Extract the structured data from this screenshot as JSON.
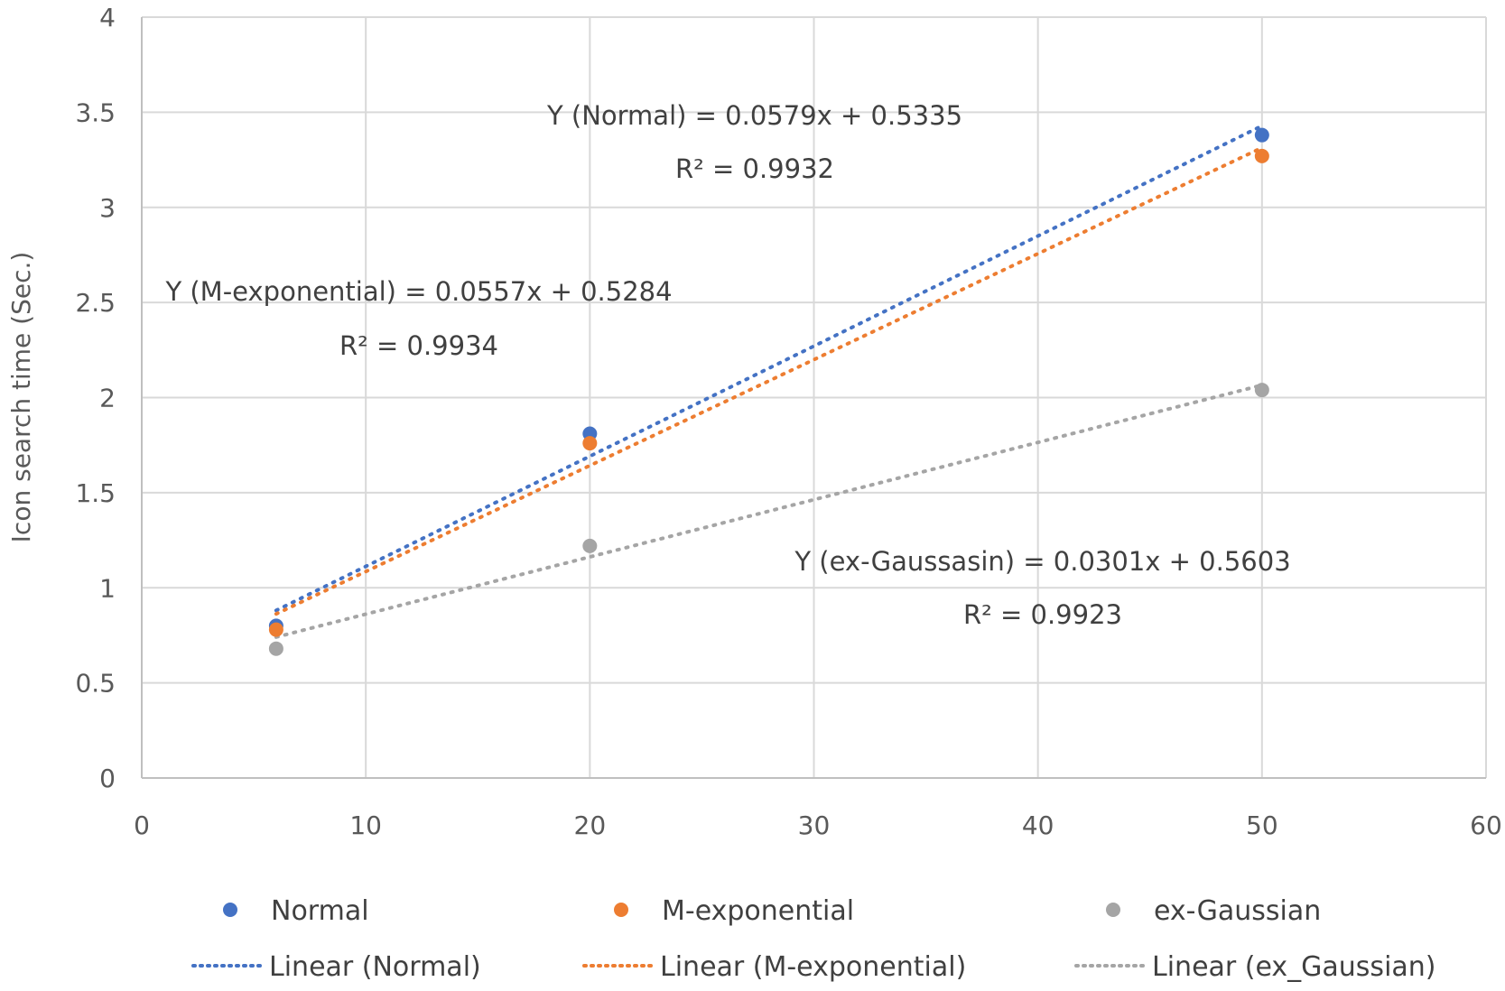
{
  "chart_data": {
    "type": "scatter",
    "title": "",
    "xlabel": "",
    "ylabel": "Icon search time (Sec.)",
    "xlim": [
      0,
      60
    ],
    "ylim": [
      0,
      4
    ],
    "xticks": [
      0,
      10,
      20,
      30,
      40,
      50,
      60
    ],
    "yticks": [
      0,
      0.5,
      1,
      1.5,
      2,
      2.5,
      3,
      3.5,
      4
    ],
    "xtick_labels": [
      "0",
      "10",
      "20",
      "30",
      "40",
      "50",
      "60"
    ],
    "ytick_labels": [
      "0",
      "0.5",
      "1",
      "1.5",
      "2",
      "2.5",
      "3",
      "3.5",
      "4"
    ],
    "grid": true,
    "legend_position": "bottom",
    "x": [
      6,
      20,
      50
    ],
    "series": [
      {
        "name": "Normal",
        "color": "#4472c4",
        "values": [
          0.8,
          1.81,
          3.38
        ],
        "trendline": {
          "name": "Linear (Normal)",
          "slope": 0.0579,
          "intercept": 0.5335,
          "r2": 0.9932,
          "equation_label": "Y (Normal) = 0.0579x + 0.5335",
          "r2_label": "R² = 0.9932"
        }
      },
      {
        "name": "M-exponential",
        "color": "#ed7d31",
        "values": [
          0.78,
          1.76,
          3.27
        ],
        "trendline": {
          "name": "Linear (M-exponential)",
          "slope": 0.0557,
          "intercept": 0.5284,
          "r2": 0.9934,
          "equation_label": "Y (M-exponential) = 0.0557x + 0.5284",
          "r2_label": "R² = 0.9934"
        }
      },
      {
        "name": "ex-Gaussian",
        "color": "#a5a5a5",
        "values": [
          0.68,
          1.22,
          2.04
        ],
        "trendline": {
          "name": "Linear (ex_Gaussian)",
          "slope": 0.0301,
          "intercept": 0.5603,
          "r2": 0.9923,
          "equation_label": "Y (ex-Gaussasin) = 0.0301x + 0.5603",
          "r2_label": "R² = 0.9923"
        }
      }
    ]
  }
}
